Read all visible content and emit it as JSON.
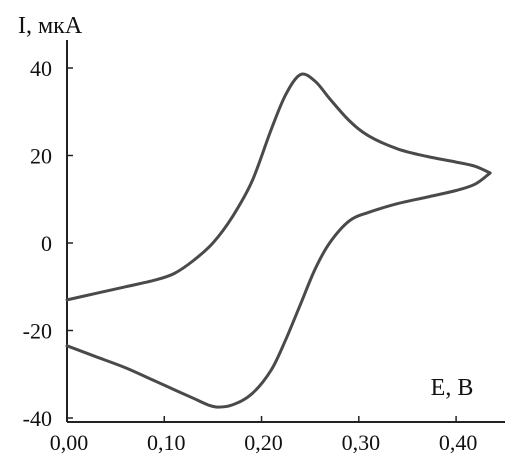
{
  "chart_data": {
    "type": "line",
    "title": "",
    "xlabel": "E, В",
    "ylabel": "I, мкА",
    "xlim": [
      0.0,
      0.44
    ],
    "ylim": [
      -40,
      43
    ],
    "x_ticks": [
      0.0,
      0.1,
      0.2,
      0.3,
      0.4
    ],
    "x_tick_labels": [
      "0,00",
      "0,10",
      "0,20",
      "0,30",
      "0,40"
    ],
    "y_ticks": [
      -40,
      -20,
      0,
      20,
      40
    ],
    "y_tick_labels": [
      "-40",
      "-20",
      "0",
      "20",
      "40"
    ],
    "grid": false,
    "legend": "none",
    "line_color": "#4a4a4a",
    "series": [
      {
        "x": [
          0.0,
          0.03,
          0.06,
          0.09,
          0.11,
          0.13,
          0.15,
          0.17,
          0.19,
          0.21,
          0.225,
          0.24,
          0.255,
          0.27,
          0.29,
          0.31,
          0.34,
          0.37,
          0.4,
          0.42,
          0.435
        ],
        "y": [
          -13,
          -11.5,
          -10,
          -8.5,
          -7,
          -4,
          0,
          6,
          14,
          26,
          34,
          38.5,
          37,
          33,
          28,
          24.5,
          21.5,
          19.8,
          18.5,
          17.5,
          16
        ]
      },
      {
        "x": [
          0.435,
          0.42,
          0.4,
          0.37,
          0.34,
          0.31,
          0.29,
          0.27,
          0.255,
          0.24,
          0.225,
          0.21,
          0.19,
          0.17,
          0.155,
          0.145,
          0.13,
          0.11,
          0.09,
          0.06,
          0.03,
          0.0
        ],
        "y": [
          16,
          13.5,
          12,
          10.5,
          9,
          7,
          5,
          0,
          -6,
          -14,
          -22,
          -29,
          -34.5,
          -37,
          -37.5,
          -37,
          -35.5,
          -33.5,
          -31.5,
          -28.5,
          -26,
          -23.5
        ]
      }
    ]
  }
}
